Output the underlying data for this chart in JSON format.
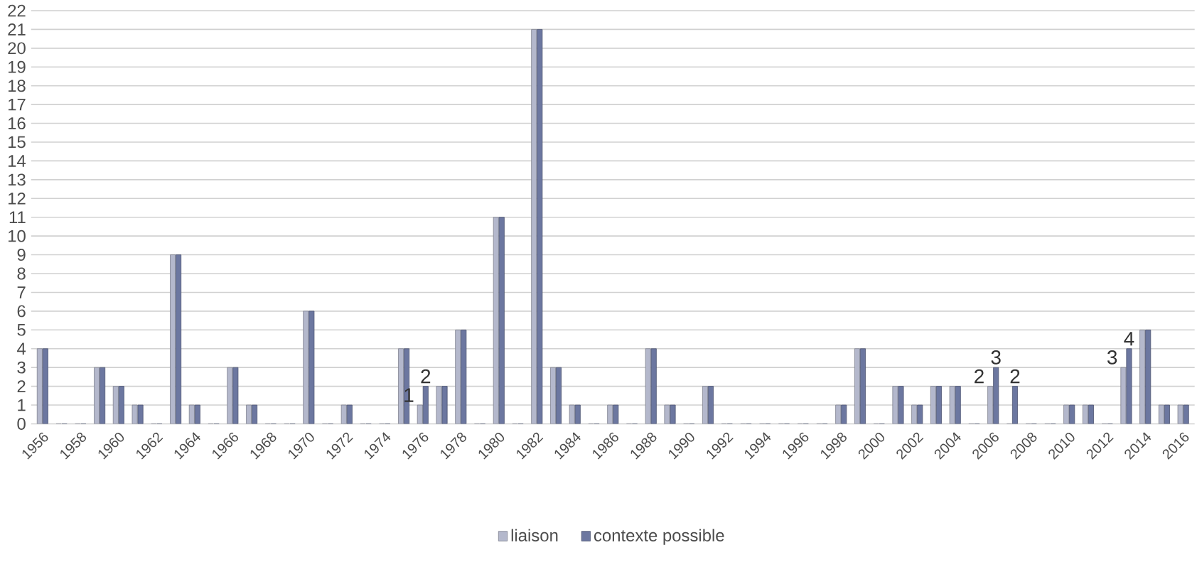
{
  "chart_data": {
    "type": "bar",
    "categories": [
      "1956",
      null,
      "1958",
      null,
      "1960",
      null,
      "1962",
      null,
      "1964",
      null,
      "1966",
      null,
      "1968",
      null,
      "1970",
      null,
      "1972",
      null,
      "1974",
      null,
      "1976",
      null,
      "1978",
      null,
      "1980",
      null,
      "1982",
      null,
      "1984",
      null,
      "1986",
      null,
      "1988",
      null,
      "1990",
      null,
      "1992",
      null,
      "1994",
      null,
      "1996",
      null,
      "1998",
      null,
      "2000",
      null,
      "2002",
      null,
      "2004",
      null,
      "2006",
      null,
      "2008",
      null,
      "2010",
      null,
      "2012",
      null,
      "2014",
      null,
      "2016"
    ],
    "series": [
      {
        "name": "liaison",
        "color": "#b4b8cc",
        "values": [
          4,
          0,
          0,
          3,
          2,
          1,
          0,
          9,
          1,
          0,
          3,
          1,
          0,
          0,
          6,
          0,
          1,
          0,
          0,
          4,
          1,
          2,
          5,
          0,
          11,
          0,
          21,
          3,
          1,
          0,
          1,
          0,
          4,
          1,
          0,
          2,
          0,
          0,
          0,
          0,
          0,
          0,
          1,
          4,
          0,
          2,
          1,
          2,
          2,
          0,
          2,
          0,
          0,
          0,
          1,
          1,
          0,
          3,
          5,
          1,
          1
        ],
        "value_labels": [
          null,
          null,
          null,
          null,
          null,
          null,
          null,
          null,
          null,
          null,
          null,
          null,
          null,
          null,
          null,
          null,
          null,
          null,
          null,
          null,
          "1",
          null,
          null,
          null,
          null,
          null,
          null,
          null,
          null,
          null,
          null,
          null,
          null,
          null,
          null,
          null,
          null,
          null,
          null,
          null,
          null,
          null,
          null,
          null,
          null,
          null,
          null,
          null,
          null,
          null,
          "2",
          null,
          null,
          null,
          null,
          null,
          null,
          "3",
          null,
          null,
          null
        ]
      },
      {
        "name": "contexte possible",
        "color": "#6c77a0",
        "values": [
          4,
          0,
          0,
          3,
          2,
          1,
          0,
          9,
          1,
          0,
          3,
          1,
          0,
          0,
          6,
          0,
          1,
          0,
          0,
          4,
          2,
          2,
          5,
          0,
          11,
          0,
          21,
          3,
          1,
          0,
          1,
          0,
          4,
          1,
          0,
          2,
          0,
          0,
          0,
          0,
          0,
          0,
          1,
          4,
          0,
          2,
          1,
          2,
          2,
          0,
          3,
          2,
          0,
          0,
          1,
          1,
          0,
          4,
          5,
          1,
          1
        ],
        "value_labels": [
          null,
          null,
          null,
          null,
          null,
          null,
          null,
          null,
          null,
          null,
          null,
          null,
          null,
          null,
          null,
          null,
          null,
          null,
          null,
          null,
          "2",
          null,
          null,
          null,
          null,
          null,
          null,
          null,
          null,
          null,
          null,
          null,
          null,
          null,
          null,
          null,
          null,
          null,
          null,
          null,
          null,
          null,
          null,
          null,
          null,
          null,
          null,
          null,
          null,
          null,
          "3",
          "2",
          null,
          null,
          null,
          null,
          null,
          "4",
          null,
          null,
          null
        ]
      }
    ],
    "ylim": [
      0,
      22
    ],
    "yticks": [
      0,
      1,
      2,
      3,
      4,
      5,
      6,
      7,
      8,
      9,
      10,
      11,
      12,
      13,
      14,
      15,
      16,
      17,
      18,
      19,
      20,
      21,
      22
    ],
    "grid": "y",
    "legend": "bottom"
  }
}
